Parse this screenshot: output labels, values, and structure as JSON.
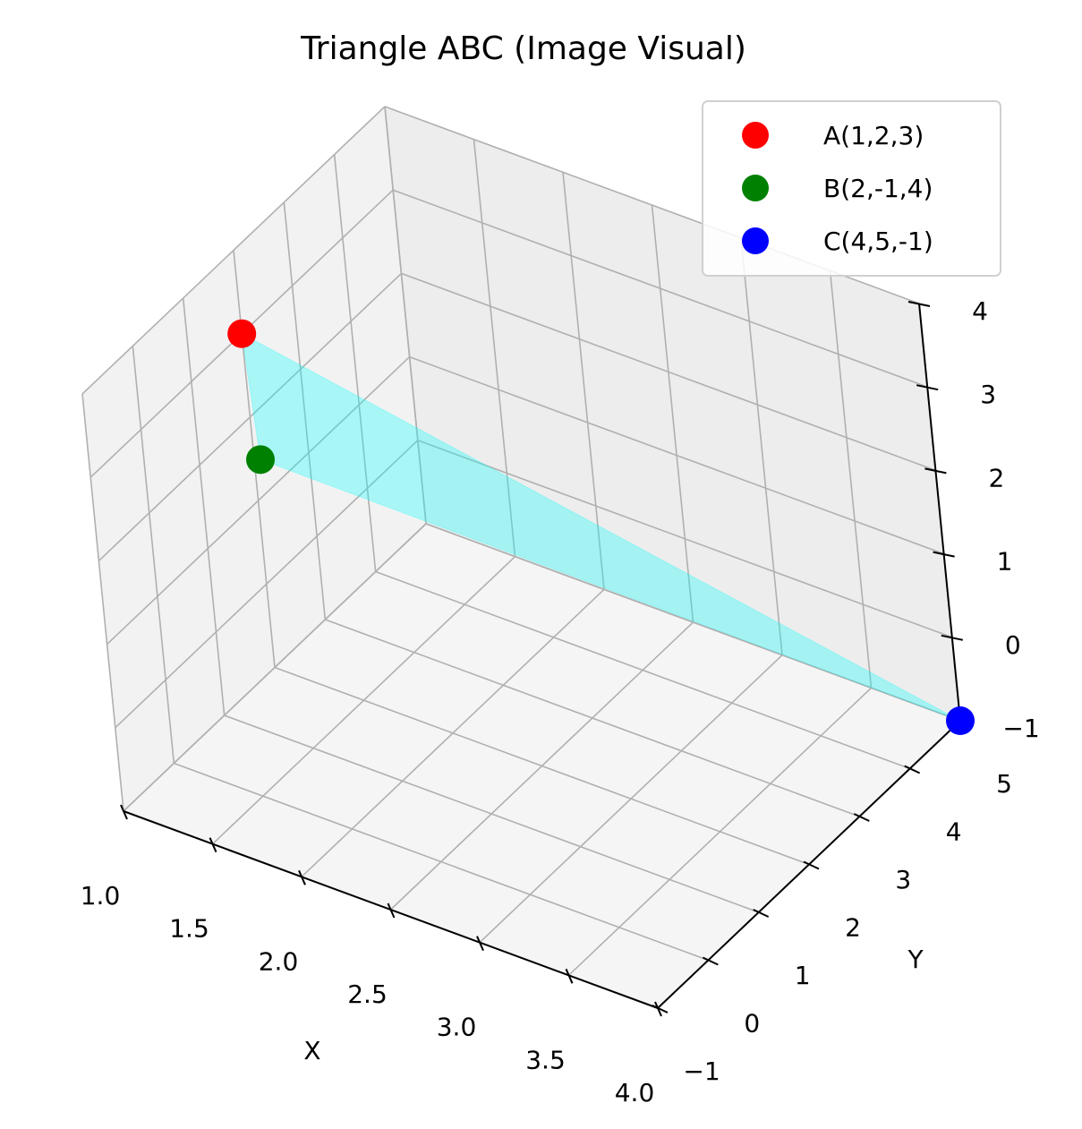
{
  "chart_data": {
    "type": "scatter",
    "projection": "3d",
    "title": "Triangle ABC (Image Visual)",
    "xlabel": "X",
    "ylabel": "Y",
    "zlabel": "",
    "xlim": [
      1.0,
      4.0
    ],
    "ylim": [
      -1,
      5
    ],
    "zlim": [
      -1,
      4
    ],
    "x_ticks": [
      1.0,
      1.5,
      2.0,
      2.5,
      3.0,
      3.5,
      4.0
    ],
    "x_tick_labels": [
      "1.0",
      "1.5",
      "2.0",
      "2.5",
      "3.0",
      "3.5",
      "4.0"
    ],
    "y_ticks": [
      -1,
      0,
      1,
      2,
      3,
      4,
      5
    ],
    "y_tick_labels": [
      "−1",
      "0",
      "1",
      "2",
      "3",
      "4",
      "5"
    ],
    "z_ticks": [
      -1,
      0,
      1,
      2,
      3,
      4
    ],
    "z_tick_labels": [
      "−1",
      "0",
      "1",
      "2",
      "3",
      "4"
    ],
    "grid": true,
    "legend_position": "top-right",
    "points": [
      {
        "label": "A(1,2,3)",
        "x": 1,
        "y": 2,
        "z": 3,
        "color": "#ff0000"
      },
      {
        "label": "B(2,-1,4)",
        "x": 2,
        "y": -1,
        "z": 4,
        "color": "#008000"
      },
      {
        "label": "C(4,5,-1)",
        "x": 4,
        "y": 5,
        "z": -1,
        "color": "#0000ff"
      }
    ],
    "triangle": {
      "vertices": [
        "A",
        "B",
        "C"
      ],
      "fill": "#00ffff",
      "alpha": 0.3
    }
  }
}
